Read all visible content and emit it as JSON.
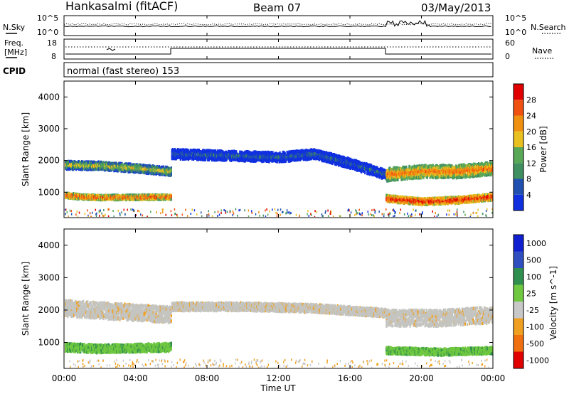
{
  "header": {
    "title": "Hankasalmi (fitACF)",
    "beam": "Beam 07",
    "date": "03/May/2013"
  },
  "noise_panel": {
    "left_label": "N.Sky",
    "right_label": "N.Search",
    "left_ticks": [
      "10^5",
      "10^0"
    ],
    "right_ticks": [
      "10^5",
      "10^0"
    ]
  },
  "freq_panel": {
    "left_label_line1": "Freq.",
    "left_label_line2": "[MHz]",
    "left_ticks": [
      "18",
      "8"
    ],
    "right_label": "Nave",
    "right_ticks": [
      "60",
      "0"
    ]
  },
  "cpid_panel": {
    "label": "CPID",
    "text": "normal (fast stereo) 153"
  },
  "axes": {
    "ylabel": "Slant Range [km]",
    "y_ticks": [
      "1000",
      "2000",
      "3000",
      "4000"
    ],
    "x_ticks": [
      "00:00",
      "04:00",
      "08:00",
      "12:00",
      "16:00",
      "20:00",
      "00:00"
    ],
    "xlabel": "Time UT"
  },
  "colors": {
    "power": [
      "#1030e0",
      "#2050b0",
      "#3f8f60",
      "#58a858",
      "#e8c020",
      "#f09010",
      "#f05010",
      "#e00000"
    ],
    "velocity": [
      "#1020d0",
      "#2f4fc0",
      "#2f8f4f",
      "#70c840",
      "#c8c8c8",
      "#f0a020",
      "#f07010",
      "#e00000"
    ],
    "velocity_ground": "#c4c4c0"
  },
  "chart_data": [
    {
      "type": "heatmap",
      "title": "",
      "xlabel": "Time UT",
      "ylabel": "Slant Range [km]",
      "xlim": [
        0,
        24
      ],
      "ylim": [
        200,
        4500
      ],
      "colorbar": {
        "label": "Power [dB]",
        "ticks": [
          "4",
          "8",
          "12",
          "16",
          "20",
          "24",
          "28"
        ],
        "range": [
          0,
          30
        ]
      },
      "bands": [
        {
          "name": "",
          "t": [
            0,
            2,
            4,
            6
          ],
          "range_km": [
            1900,
            1880,
            1800,
            1700
          ],
          "width_km": 250,
          "value_db": 18
        },
        {
          "name": "",
          "t": [
            0,
            1,
            2,
            6
          ],
          "range_km": [
            950,
            900,
            880,
            900
          ],
          "width_km": 150,
          "value_db": 26
        },
        {
          "name": "",
          "t": [
            6,
            9,
            12,
            14,
            16,
            18
          ],
          "range_km": [
            2250,
            2200,
            2150,
            2250,
            1950,
            1600
          ],
          "width_km": 300,
          "value_db": 8
        },
        {
          "name": "",
          "t": [
            18,
            20,
            22,
            24
          ],
          "range_km": [
            1600,
            1700,
            1700,
            1800
          ],
          "width_km": 400,
          "value_db": 24
        },
        {
          "name": "",
          "t": [
            18,
            20,
            22,
            24
          ],
          "range_km": [
            850,
            750,
            800,
            900
          ],
          "width_km": 200,
          "value_db": 29
        }
      ]
    },
    {
      "type": "heatmap",
      "title": "",
      "xlabel": "Time UT",
      "ylabel": "Slant Range [km]",
      "xlim": [
        0,
        24
      ],
      "ylim": [
        200,
        4500
      ],
      "colorbar": {
        "label": "Velocity [m s^-1]",
        "ticks": [
          "1000",
          "500",
          "100",
          "25",
          "-25",
          "-100",
          "-500",
          "-1000"
        ]
      },
      "bands": [
        {
          "name": "",
          "t": [
            0,
            3,
            6
          ],
          "range_km": [
            2100,
            2000,
            1900
          ],
          "width_km": 500,
          "value_ms": 0
        },
        {
          "name": "",
          "t": [
            0,
            2,
            6
          ],
          "range_km": [
            900,
            850,
            900
          ],
          "width_km": 250,
          "value_ms": 100
        },
        {
          "name": "",
          "t": [
            6,
            10,
            14,
            18
          ],
          "range_km": [
            2150,
            2150,
            2100,
            1950
          ],
          "width_km": 250,
          "value_ms": 0
        },
        {
          "name": "",
          "t": [
            18,
            21,
            24
          ],
          "range_km": [
            1800,
            1800,
            1900
          ],
          "width_km": 500,
          "value_ms": 0
        },
        {
          "name": "",
          "t": [
            18,
            21,
            24
          ],
          "range_km": [
            800,
            750,
            800
          ],
          "width_km": 200,
          "value_ms": 100
        }
      ]
    }
  ]
}
